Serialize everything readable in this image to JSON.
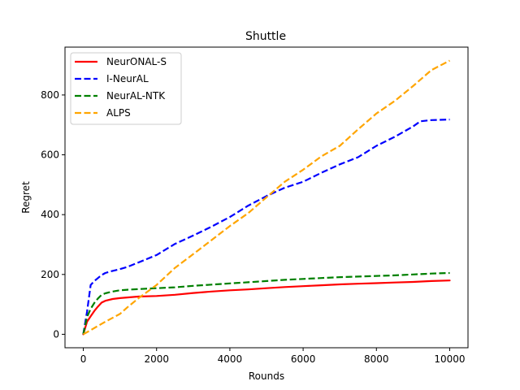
{
  "chart_data": {
    "type": "line",
    "title": "Shuttle",
    "xlabel": "Rounds",
    "ylabel": "Regret",
    "xlim": [
      -500,
      10500
    ],
    "ylim": [
      -45,
      960
    ],
    "xticks": [
      0,
      2000,
      4000,
      6000,
      8000,
      10000
    ],
    "yticks": [
      0,
      200,
      400,
      600,
      800
    ],
    "xtick_labels": [
      "0",
      "2000",
      "4000",
      "6000",
      "8000",
      "10000"
    ],
    "ytick_labels": [
      "0",
      "200",
      "400",
      "600",
      "800"
    ],
    "grid": false,
    "legend_position": "top-left",
    "series": [
      {
        "name": "NeurONAL-S",
        "color": "#ff0000",
        "dash": "solid",
        "x": [
          0,
          100,
          200,
          300,
          400,
          500,
          600,
          800,
          1000,
          1200,
          1500,
          2000,
          2500,
          3000,
          3500,
          4000,
          4500,
          5000,
          5500,
          6000,
          6500,
          7000,
          7500,
          8000,
          8500,
          9000,
          9500,
          10000
        ],
        "y": [
          0,
          42,
          60,
          78,
          93,
          106,
          112,
          118,
          121,
          123,
          126,
          128,
          132,
          138,
          143,
          147,
          150,
          154,
          158,
          161,
          164,
          167,
          169,
          171,
          173,
          175,
          178,
          180
        ]
      },
      {
        "name": "I-NeurAL",
        "color": "#0000ff",
        "dash": "dashed",
        "x": [
          0,
          100,
          200,
          300,
          400,
          500,
          600,
          800,
          1000,
          1200,
          1500,
          2000,
          2500,
          3000,
          3500,
          4000,
          4500,
          5000,
          5500,
          6000,
          6500,
          7000,
          7500,
          8000,
          8500,
          9000,
          9200,
          9500,
          10000
        ],
        "y": [
          0,
          75,
          165,
          178,
          188,
          198,
          205,
          212,
          218,
          225,
          240,
          265,
          302,
          330,
          360,
          392,
          430,
          462,
          490,
          510,
          540,
          568,
          592,
          630,
          660,
          695,
          712,
          716,
          718
        ]
      },
      {
        "name": "NeurAL-NTK",
        "color": "#008000",
        "dash": "dashed",
        "x": [
          0,
          100,
          200,
          300,
          400,
          500,
          600,
          800,
          1000,
          1200,
          1500,
          2000,
          2500,
          3000,
          3500,
          4000,
          4500,
          5000,
          5500,
          6000,
          6500,
          7000,
          7500,
          8000,
          8500,
          9000,
          9500,
          10000
        ],
        "y": [
          0,
          58,
          85,
          105,
          120,
          132,
          137,
          143,
          147,
          149,
          151,
          154,
          157,
          162,
          166,
          170,
          174,
          178,
          182,
          185,
          188,
          191,
          193,
          195,
          197,
          200,
          203,
          205
        ]
      },
      {
        "name": "ALPS",
        "color": "#ffa500",
        "dash": "dashed",
        "x": [
          0,
          200,
          400,
          600,
          800,
          1000,
          1200,
          1500,
          2000,
          2500,
          3000,
          3500,
          4000,
          4500,
          5000,
          5500,
          6000,
          6500,
          7000,
          7500,
          8000,
          8500,
          9000,
          9500,
          10000
        ],
        "y": [
          0,
          14,
          28,
          42,
          55,
          68,
          90,
          120,
          165,
          222,
          268,
          315,
          362,
          405,
          458,
          510,
          550,
          595,
          630,
          685,
          738,
          780,
          830,
          883,
          915
        ]
      }
    ]
  }
}
